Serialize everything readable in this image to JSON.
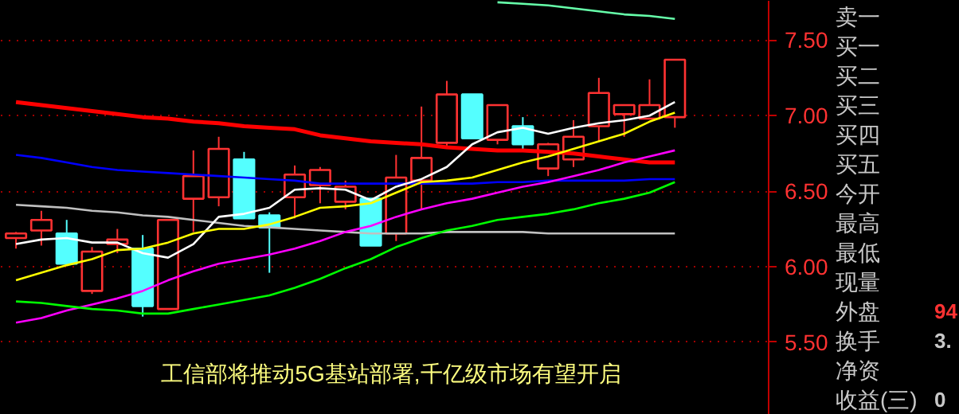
{
  "chart_data": [
    {
      "type": "candlestick",
      "tick_labels": "y",
      "grid": "y",
      "categories": [
        null,
        null,
        null,
        null,
        null,
        null,
        null,
        null,
        null,
        null,
        null,
        null,
        null,
        null,
        null,
        null,
        null,
        null,
        null,
        null,
        null,
        null,
        null,
        null,
        null,
        null,
        null
      ],
      "ylim": [
        5.02,
        7.76
      ],
      "yticks": [
        {
          "value": 5.5,
          "label": "5.50"
        },
        {
          "value": 6.0,
          "label": "6.00"
        },
        {
          "value": 6.5,
          "label": "6.50"
        },
        {
          "value": 7.0,
          "label": "7.00"
        },
        {
          "value": 7.5,
          "label": "7.50"
        }
      ],
      "ohlc": [
        [
          6.19,
          6.23,
          6.12,
          6.22
        ],
        [
          6.24,
          6.37,
          6.14,
          6.31
        ],
        [
          6.22,
          6.31,
          6.02,
          6.02
        ],
        [
          5.84,
          6.13,
          5.82,
          6.1
        ],
        [
          6.15,
          6.25,
          6.09,
          6.18
        ],
        [
          6.12,
          6.21,
          5.67,
          5.74
        ],
        [
          5.72,
          6.31,
          5.72,
          6.31
        ],
        [
          6.45,
          6.77,
          6.23,
          6.6
        ],
        [
          6.46,
          6.86,
          6.4,
          6.78
        ],
        [
          6.71,
          6.76,
          6.32,
          6.32
        ],
        [
          6.34,
          6.36,
          5.96,
          6.26
        ],
        [
          6.46,
          6.67,
          6.32,
          6.61
        ],
        [
          6.54,
          6.66,
          6.42,
          6.64
        ],
        [
          6.43,
          6.57,
          6.38,
          6.53
        ],
        [
          6.45,
          6.45,
          6.14,
          6.14
        ],
        [
          6.22,
          6.74,
          6.17,
          6.59
        ],
        [
          6.57,
          7.06,
          6.38,
          6.72
        ],
        [
          6.82,
          7.23,
          6.79,
          7.14
        ],
        [
          7.14,
          7.14,
          6.85,
          6.85
        ],
        [
          6.84,
          7.07,
          6.81,
          7.07
        ],
        [
          6.93,
          6.99,
          6.78,
          6.81
        ],
        [
          6.65,
          6.82,
          6.6,
          6.81
        ],
        [
          6.71,
          6.97,
          6.66,
          6.86
        ],
        [
          6.93,
          7.25,
          6.83,
          7.15
        ],
        [
          7.01,
          7.07,
          6.86,
          7.07
        ],
        [
          6.98,
          7.24,
          6.98,
          7.07
        ],
        [
          6.99,
          7.37,
          6.92,
          7.37
        ]
      ],
      "colors": [
        "#ff3232",
        "#ff3232",
        "#54ffff",
        "#ff3232",
        "#ff3232",
        "#54ffff",
        "#ff3232",
        "#ff3232",
        "#ff3232",
        "#54ffff",
        "#54ffff",
        "#ff3232",
        "#ff3232",
        "#ff3232",
        "#54ffff",
        "#ff3232",
        "#ff3232",
        "#ff3232",
        "#54ffff",
        "#ff3232",
        "#54ffff",
        "#ff3232",
        "#ff3232",
        "#ff3232",
        "#ff3232",
        "#ff3232",
        "#ff3232"
      ],
      "series": [
        {
          "type": "line",
          "color": "#ff0000",
          "values": [
            7.09,
            7.07,
            7.05,
            7.03,
            7.01,
            6.99,
            6.98,
            6.96,
            6.95,
            6.93,
            6.92,
            6.91,
            6.87,
            6.85,
            6.83,
            6.82,
            6.81,
            6.79,
            6.78,
            6.77,
            6.77,
            6.76,
            6.75,
            6.73,
            6.71,
            6.69,
            6.69
          ]
        },
        {
          "type": "line",
          "color": "#0000ff",
          "values": [
            6.74,
            6.72,
            6.69,
            6.66,
            6.64,
            6.63,
            6.62,
            6.61,
            6.6,
            6.59,
            6.58,
            6.57,
            6.55,
            6.55,
            6.55,
            6.55,
            6.55,
            6.55,
            6.55,
            6.56,
            6.56,
            6.57,
            6.57,
            6.57,
            6.57,
            6.58,
            6.58
          ]
        },
        {
          "type": "line",
          "color": "#c0c0c0",
          "values": [
            6.41,
            6.4,
            6.39,
            6.37,
            6.36,
            6.34,
            6.33,
            6.31,
            6.29,
            6.27,
            6.26,
            6.25,
            6.24,
            6.23,
            6.22,
            6.22,
            6.22,
            6.23,
            6.23,
            6.23,
            6.23,
            6.22,
            6.22,
            6.22,
            6.22,
            6.22,
            6.22
          ]
        },
        {
          "type": "line",
          "color": "#ffffff",
          "values": [
            6.15,
            6.18,
            6.19,
            6.16,
            6.16,
            6.09,
            6.06,
            6.15,
            6.33,
            6.35,
            6.39,
            6.51,
            6.52,
            6.51,
            6.44,
            6.53,
            6.58,
            6.66,
            6.81,
            6.89,
            6.92,
            6.88,
            6.92,
            6.95,
            6.97,
            7.0,
            7.09
          ]
        },
        {
          "type": "line",
          "color": "#ffff00",
          "values": [
            5.91,
            5.96,
            6.01,
            6.05,
            6.11,
            6.12,
            6.16,
            6.22,
            6.25,
            6.25,
            6.28,
            6.33,
            6.39,
            6.4,
            6.42,
            6.49,
            6.56,
            6.57,
            6.59,
            6.64,
            6.69,
            6.73,
            6.78,
            6.83,
            6.88,
            6.96,
            7.02
          ]
        },
        {
          "type": "line",
          "color": "#ff00ff",
          "values": [
            5.63,
            5.66,
            5.71,
            5.75,
            5.79,
            5.84,
            5.91,
            5.97,
            6.02,
            6.05,
            6.08,
            6.12,
            6.17,
            6.23,
            6.27,
            6.33,
            6.38,
            6.42,
            6.45,
            6.49,
            6.53,
            6.56,
            6.6,
            6.64,
            6.69,
            6.73,
            6.77
          ]
        },
        {
          "type": "line",
          "color": "#00ff00",
          "values": [
            5.77,
            5.76,
            5.74,
            5.72,
            5.71,
            5.69,
            5.69,
            5.72,
            5.75,
            5.78,
            5.81,
            5.86,
            5.92,
            5.99,
            6.05,
            6.13,
            6.19,
            6.24,
            6.27,
            6.31,
            6.33,
            6.35,
            6.38,
            6.42,
            6.45,
            6.49,
            6.56
          ]
        },
        {
          "type": "line",
          "color": "#66ffaa",
          "values": [
            null,
            null,
            null,
            null,
            null,
            null,
            null,
            null,
            null,
            null,
            null,
            null,
            null,
            null,
            null,
            null,
            null,
            null,
            null,
            7.75,
            7.74,
            7.73,
            7.71,
            7.69,
            7.67,
            7.66,
            7.64
          ]
        }
      ],
      "annotations": [
        "工信部将推动5G基站部署,千亿级市场有望开启"
      ]
    },
    {
      "type": "other",
      "annotations": [
        "卖一",
        "买一",
        "买二",
        "买三",
        "买四",
        "买五",
        "今开",
        "最高",
        "最低",
        "现量",
        "外盘 94",
        "换手 3.",
        "净资",
        "收益(三) 0"
      ]
    }
  ]
}
